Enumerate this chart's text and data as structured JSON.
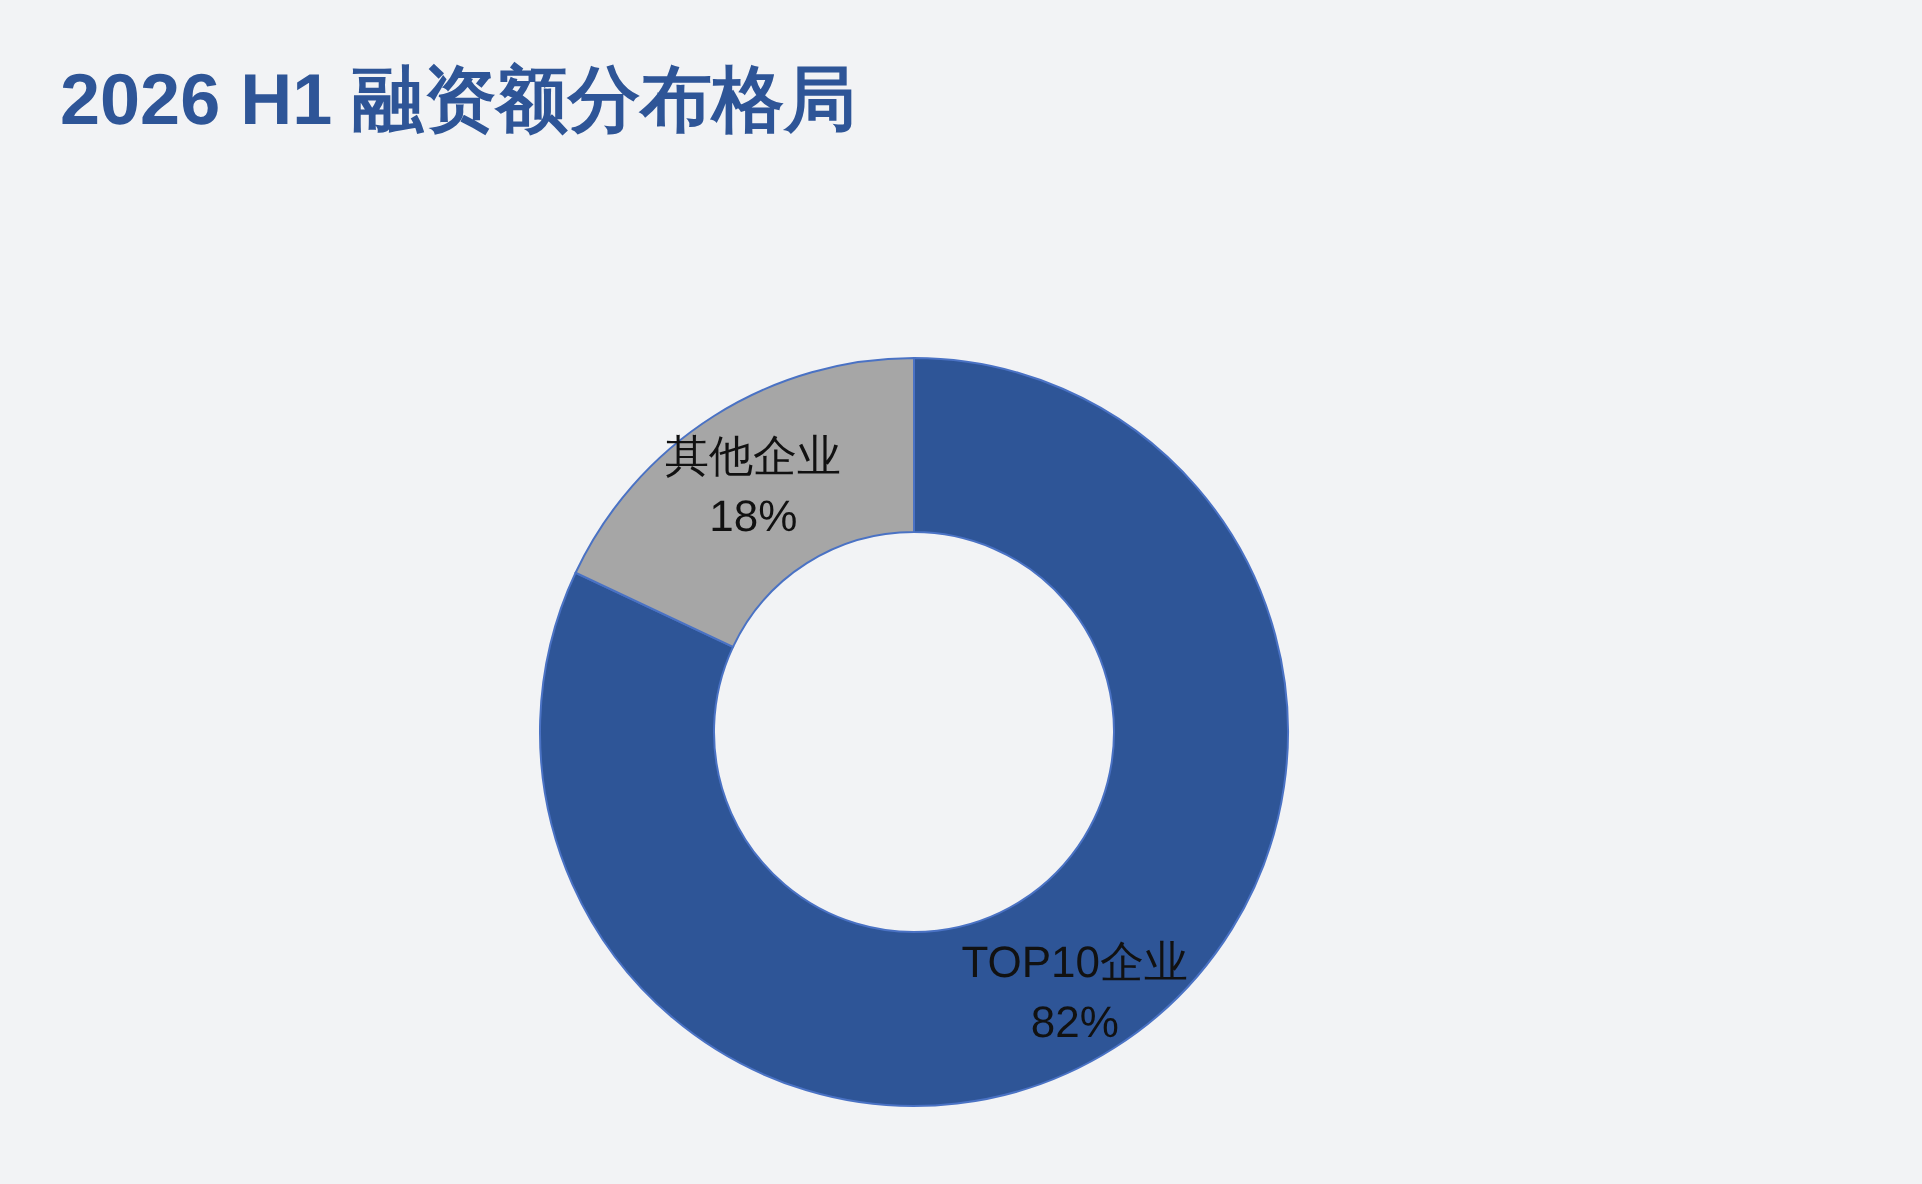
{
  "chart_data": {
    "type": "donut",
    "title": "2026 H1 融资额分布格局",
    "categories": [
      "TOP10企业",
      "其他企业"
    ],
    "values": [
      82,
      18
    ],
    "colors": [
      "#2e5597",
      "#a6a6a6"
    ],
    "value_labels": [
      "82%",
      "18%"
    ]
  }
}
